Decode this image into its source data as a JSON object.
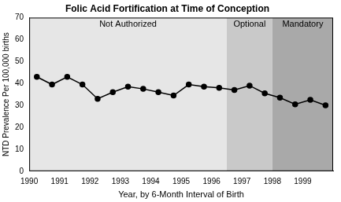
{
  "chart_data": {
    "type": "line",
    "title": "Folic Acid Fortification at Time of Conception",
    "x_label": "Year, by 6-Month Interval of Birth",
    "y_label": "NTD Prevalence Per 100,000 births",
    "x": [
      1990.25,
      1990.75,
      1991.25,
      1991.75,
      1992.25,
      1992.75,
      1993.25,
      1993.75,
      1994.25,
      1994.75,
      1995.25,
      1995.75,
      1996.25,
      1996.75,
      1997.25,
      1997.75,
      1998.25,
      1998.75,
      1999.25,
      1999.75
    ],
    "values": [
      43,
      39.5,
      43,
      39.5,
      33,
      36,
      38.5,
      37.5,
      36,
      34.5,
      39.5,
      38.5,
      38,
      37,
      39,
      35.5,
      33.5,
      30.5,
      32.5,
      30
    ],
    "color": "#000000",
    "marker": "circle",
    "xlim": [
      1990,
      2000
    ],
    "xticks": [
      1990,
      1991,
      1992,
      1993,
      1994,
      1995,
      1996,
      1997,
      1998,
      1999
    ],
    "ylim": [
      0,
      70
    ],
    "yticks": [
      0,
      10,
      20,
      30,
      40,
      50,
      60,
      70
    ],
    "grid": false,
    "regions": [
      {
        "label": "Not Authorized",
        "start": 1990,
        "end": 1996.5,
        "color": "#e6e6e6"
      },
      {
        "label": "Optional",
        "start": 1996.5,
        "end": 1998,
        "color": "#c9c9c9"
      },
      {
        "label": "Mandatory",
        "start": 1998,
        "end": 2000,
        "color": "#a9a9a9"
      }
    ]
  }
}
